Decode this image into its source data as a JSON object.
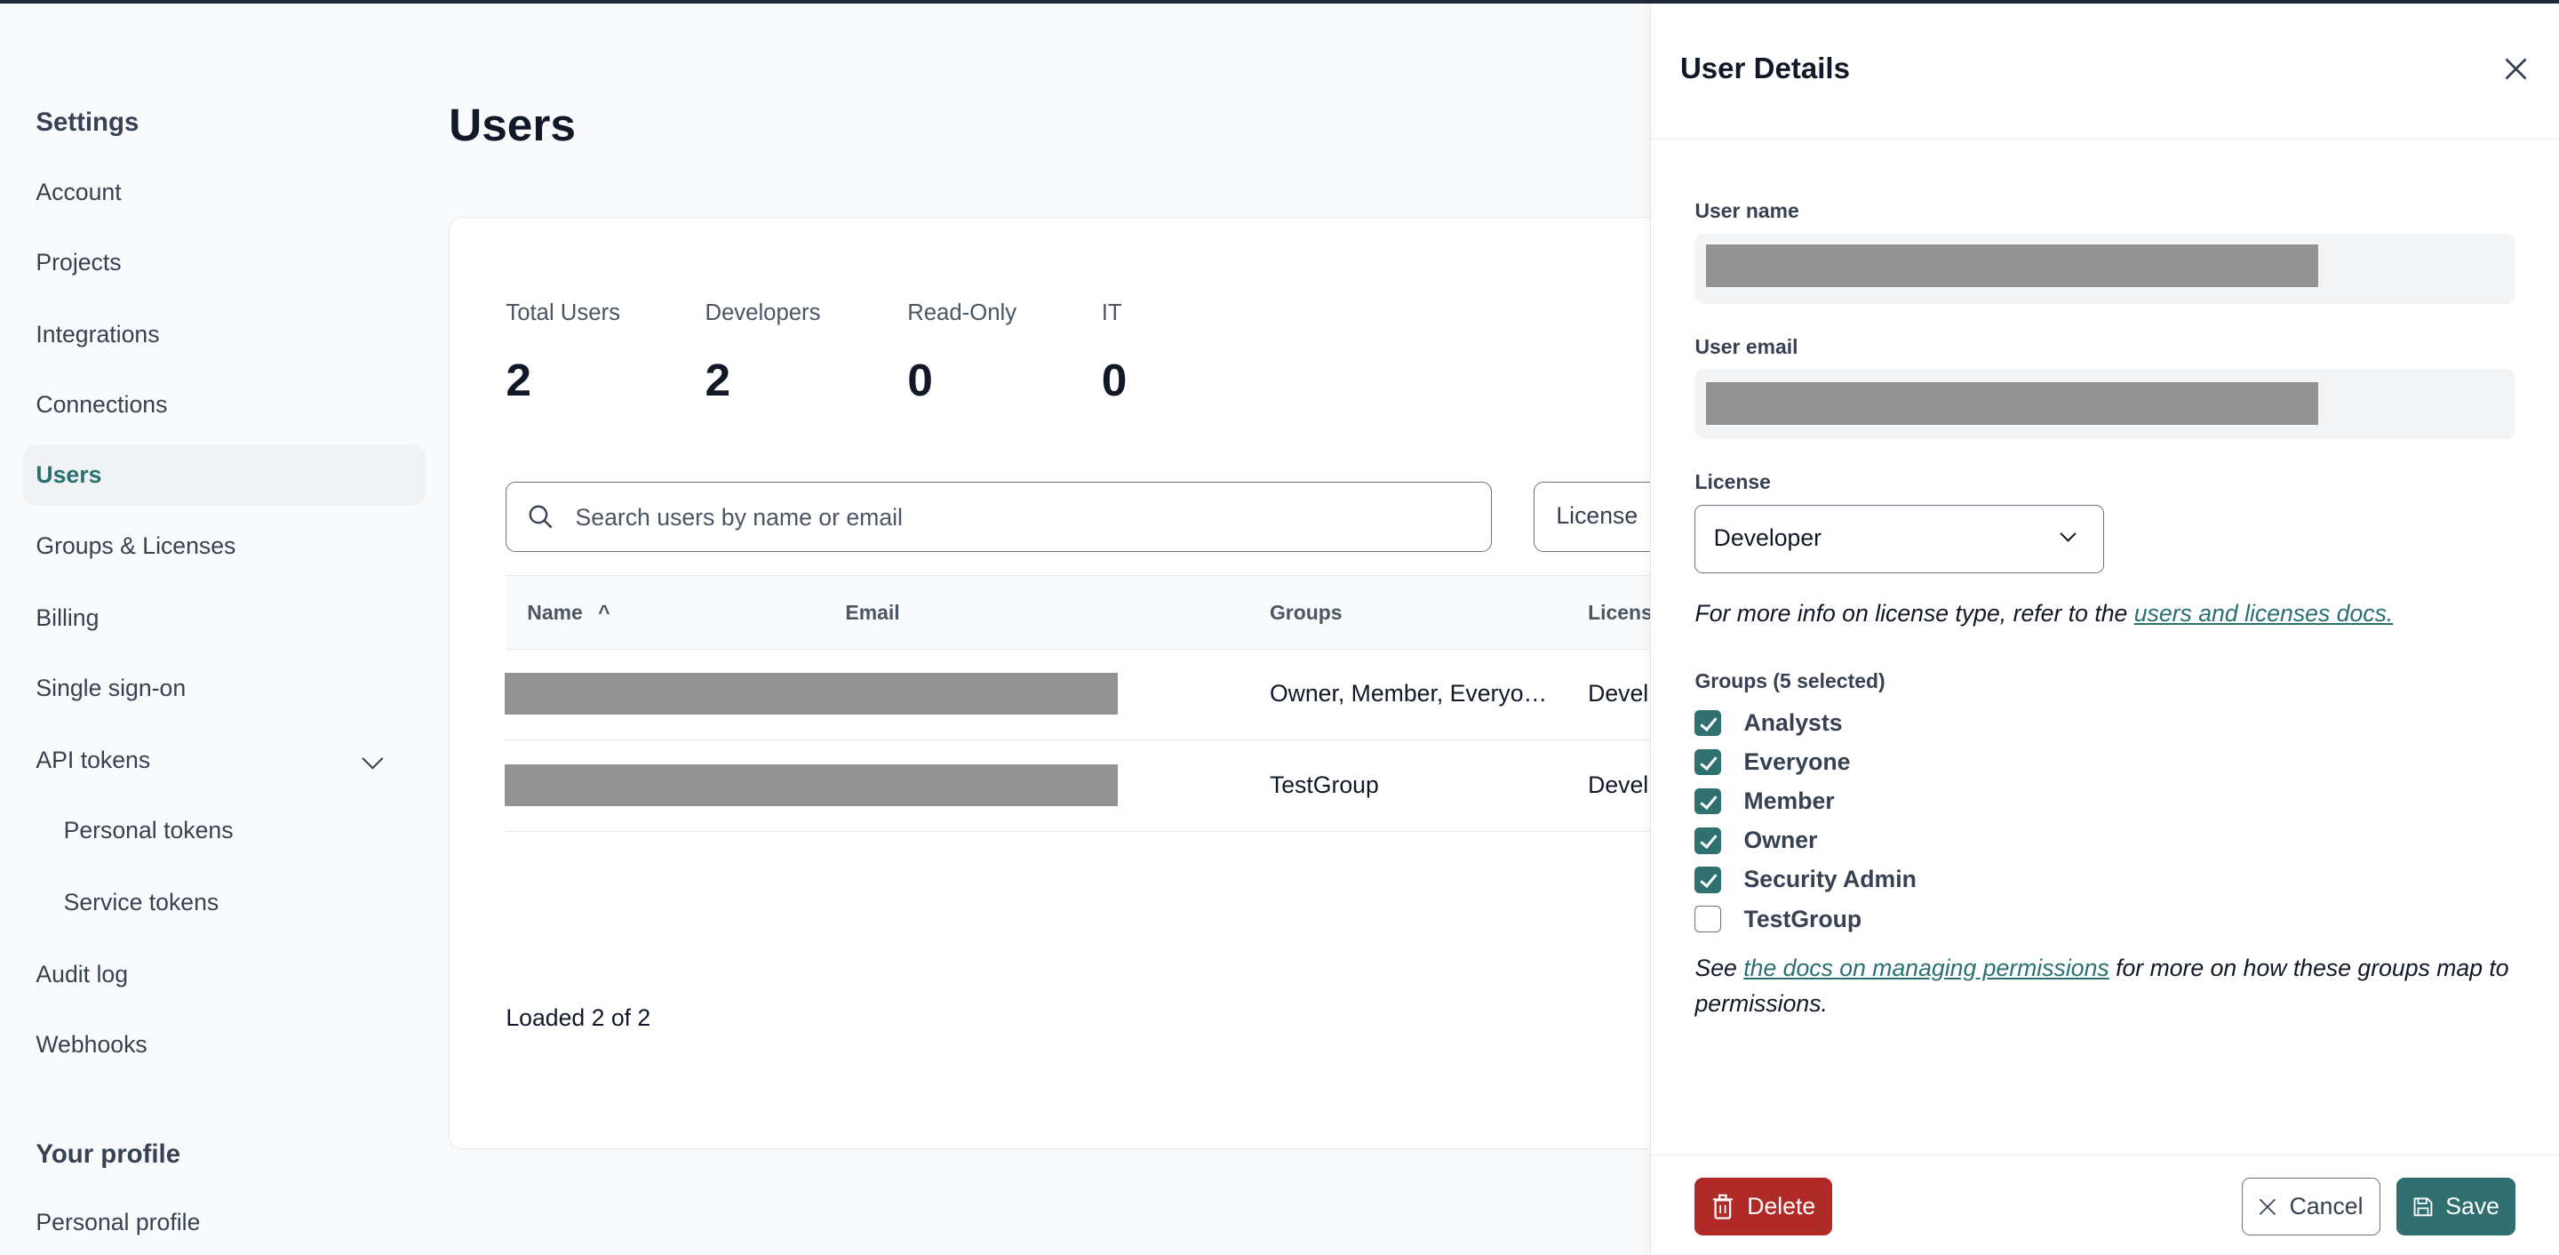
{
  "sidebar": {
    "heading": "Settings",
    "items": [
      {
        "label": "Account"
      },
      {
        "label": "Projects"
      },
      {
        "label": "Integrations"
      },
      {
        "label": "Connections"
      },
      {
        "label": "Users",
        "active": true
      },
      {
        "label": "Groups & Licenses"
      },
      {
        "label": "Billing"
      },
      {
        "label": "Single sign-on"
      },
      {
        "label": "API tokens",
        "expanded": true
      },
      {
        "label": "Personal tokens"
      },
      {
        "label": "Service tokens"
      },
      {
        "label": "Audit log"
      },
      {
        "label": "Webhooks"
      }
    ],
    "profile_heading": "Your profile",
    "profile_items": [
      {
        "label": "Personal profile"
      }
    ]
  },
  "main": {
    "title": "Users",
    "stats": [
      {
        "label": "Total Users",
        "value": "2"
      },
      {
        "label": "Developers",
        "value": "2"
      },
      {
        "label": "Read-Only",
        "value": "0"
      },
      {
        "label": "IT",
        "value": "0"
      }
    ],
    "search": {
      "placeholder": "Search users by name or email",
      "value": ""
    },
    "license_filter": "License",
    "table": {
      "columns": [
        "Name",
        "Email",
        "Groups",
        "License"
      ],
      "sort_indicator": "^",
      "rows": [
        {
          "name": "[redacted]",
          "email": "[redacted]",
          "groups": "Owner, Member, Everyo…",
          "license": "Developer"
        },
        {
          "name": "[redacted]",
          "email": "[redacted]",
          "groups": "TestGroup",
          "license": "Developer"
        }
      ]
    },
    "loaded_text": "Loaded 2 of 2"
  },
  "panel": {
    "title": "User Details",
    "user_name_label": "User name",
    "user_email_label": "User email",
    "license_label": "License",
    "license_value": "Developer",
    "license_info_prefix": "For more info on license type, refer to the ",
    "license_info_link": "users and licenses docs.",
    "groups_label": "Groups (5 selected)",
    "groups": [
      {
        "label": "Analysts",
        "checked": true
      },
      {
        "label": "Everyone",
        "checked": true
      },
      {
        "label": "Member",
        "checked": true
      },
      {
        "label": "Owner",
        "checked": true
      },
      {
        "label": "Security Admin",
        "checked": true
      },
      {
        "label": "TestGroup",
        "checked": false
      }
    ],
    "perm_prefix": "See ",
    "perm_link": "the docs on managing permissions",
    "perm_suffix": " for more on how these groups map to permissions.",
    "delete_label": "Delete",
    "cancel_label": "Cancel",
    "save_label": "Save"
  },
  "colors": {
    "accent": "#2f7070",
    "danger": "#b02a27",
    "redaction": "#939393"
  }
}
